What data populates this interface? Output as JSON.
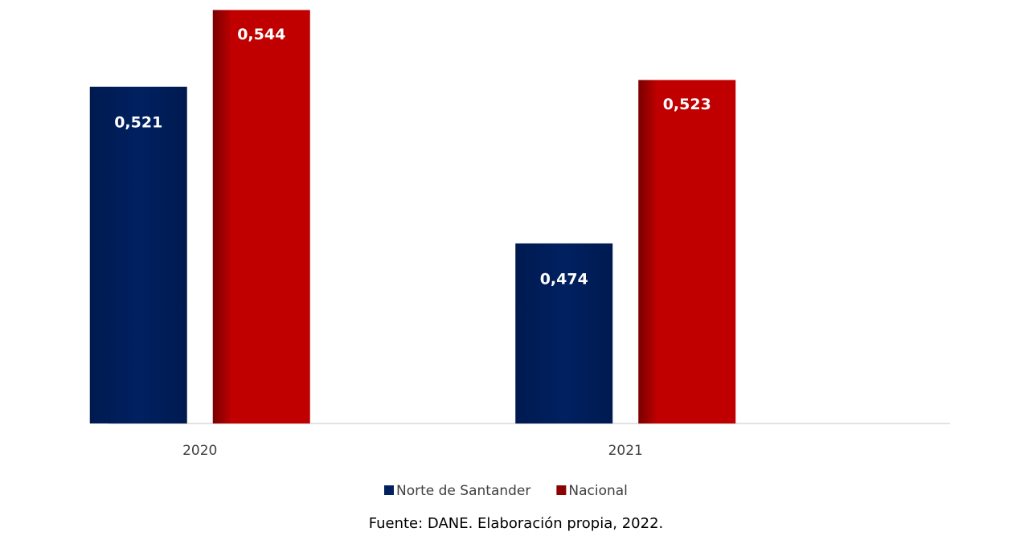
{
  "chart_data": {
    "type": "bar",
    "categories": [
      "2020",
      "2021"
    ],
    "series": [
      {
        "name": "Norte de Santander",
        "color": "#002060",
        "values": [
          0.521,
          0.474
        ],
        "value_labels": [
          "0,521",
          "0,474"
        ]
      },
      {
        "name": "Nacional",
        "color": "#c00000",
        "values": [
          0.544,
          0.523
        ],
        "value_labels": [
          "0,544",
          "0,523"
        ]
      }
    ],
    "ylim": [
      0.42,
      0.547
    ],
    "source": "Fuente: DANE. Elaboración propia, 2022."
  }
}
